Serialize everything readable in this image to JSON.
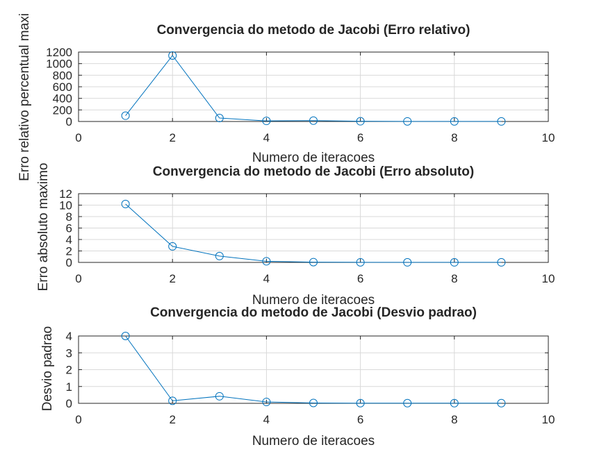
{
  "chart_data": [
    {
      "type": "line",
      "title": "Convergencia do metodo de Jacobi (Erro relativo)",
      "xlabel": "Numero de iteracoes",
      "ylabel": "Erro relativo percentual maxi",
      "xlim": [
        0,
        10
      ],
      "ylim": [
        0,
        1200
      ],
      "xticks": [
        0,
        2,
        4,
        6,
        8,
        10
      ],
      "yticks": [
        0,
        200,
        400,
        600,
        800,
        1000,
        1200
      ],
      "grid": true,
      "marker": "circle",
      "color": "#0072bd",
      "x": [
        1,
        2,
        3,
        4,
        5,
        6,
        7,
        8,
        9
      ],
      "y": [
        100,
        1140,
        60,
        10,
        15,
        4,
        2,
        2,
        1
      ]
    },
    {
      "type": "line",
      "title": "Convergencia do metodo de Jacobi (Erro absoluto)",
      "xlabel": "Numero de iteracoes",
      "ylabel": "Erro absoluto maximo",
      "xlim": [
        0,
        10
      ],
      "ylim": [
        0,
        12
      ],
      "xticks": [
        0,
        2,
        4,
        6,
        8,
        10
      ],
      "yticks": [
        0,
        2,
        4,
        6,
        8,
        10,
        12
      ],
      "grid": true,
      "marker": "circle",
      "color": "#0072bd",
      "x": [
        1,
        2,
        3,
        4,
        5,
        6,
        7,
        8,
        9
      ],
      "y": [
        10.2,
        2.8,
        1.1,
        0.2,
        0.05,
        0.02,
        0.01,
        0.01,
        0.01
      ]
    },
    {
      "type": "line",
      "title": "Convergencia do metodo de Jacobi (Desvio padrao)",
      "xlabel": "Numero de iteracoes",
      "ylabel": "Desvio padrao",
      "xlim": [
        0,
        10
      ],
      "ylim": [
        0,
        4
      ],
      "xticks": [
        0,
        2,
        4,
        6,
        8,
        10
      ],
      "yticks": [
        0,
        1,
        2,
        3,
        4
      ],
      "grid": true,
      "marker": "circle",
      "color": "#0072bd",
      "x": [
        1,
        2,
        3,
        4,
        5,
        6,
        7,
        8,
        9
      ],
      "y": [
        4.0,
        0.15,
        0.42,
        0.08,
        0.02,
        0.01,
        0.01,
        0.01,
        0.01
      ]
    }
  ]
}
